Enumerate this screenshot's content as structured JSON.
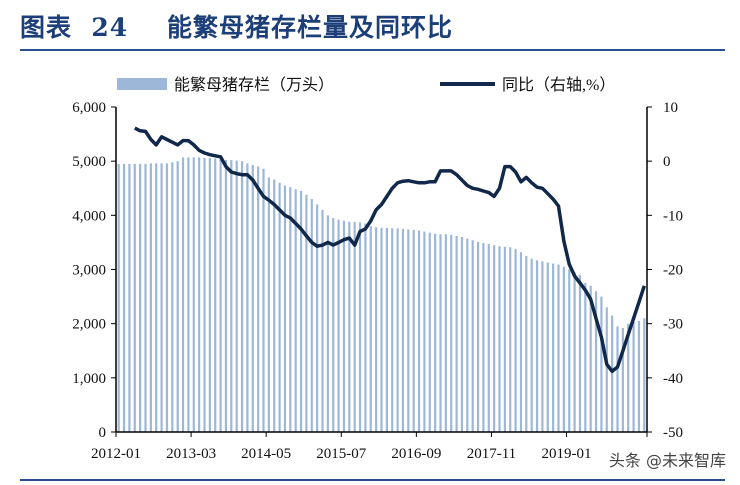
{
  "header": {
    "title": "图表  24    能繁母猪存栏量及同环比"
  },
  "watermark": "头条 @未来智库",
  "colors": {
    "bars": "#9db7d9",
    "line": "#12284a",
    "title": "#1c3f7a"
  },
  "chart_data": {
    "type": "bar+line",
    "title": "",
    "x_tick_labels": [
      "2012-01",
      "2013-03",
      "2014-05",
      "2015-07",
      "2016-09",
      "2017-11",
      "2019-01"
    ],
    "x_range": [
      "2012-01",
      "2020-03"
    ],
    "left_axis": {
      "ylim": [
        0,
        6000
      ],
      "ticks": [
        "0",
        "1,000",
        "2,000",
        "3,000",
        "4,000",
        "5,000",
        "6,000"
      ]
    },
    "right_axis": {
      "ylim": [
        -50,
        10
      ],
      "ticks": [
        "-50",
        "-40",
        "-30",
        "-20",
        "-10",
        "0",
        "10"
      ]
    },
    "legend": {
      "placement": "top",
      "bar_label": "能繁母猪存栏（万头）",
      "line_label": "同比（右轴,%）"
    },
    "grid": false,
    "series": [
      {
        "name": "能繁母猪存栏（万头）",
        "type": "bar",
        "axis": "left",
        "start": "2012-01",
        "values": [
          4950,
          4950,
          4950,
          4950,
          4950,
          4950,
          4960,
          4960,
          4960,
          4960,
          4980,
          5000,
          5070,
          5070,
          5070,
          5070,
          5060,
          5060,
          5050,
          5030,
          5020,
          5020,
          5010,
          5000,
          4960,
          4930,
          4900,
          4860,
          4700,
          4660,
          4600,
          4550,
          4520,
          4480,
          4450,
          4380,
          4300,
          4200,
          4100,
          4000,
          3950,
          3920,
          3900,
          3880,
          3880,
          3870,
          3850,
          3800,
          3780,
          3770,
          3770,
          3760,
          3760,
          3750,
          3740,
          3730,
          3720,
          3700,
          3680,
          3660,
          3650,
          3650,
          3640,
          3620,
          3600,
          3570,
          3540,
          3510,
          3490,
          3470,
          3450,
          3430,
          3420,
          3410,
          3380,
          3320,
          3250,
          3200,
          3170,
          3150,
          3130,
          3110,
          3090,
          3050,
          3000,
          2950,
          2900,
          2750,
          2700,
          2600,
          2500,
          2300,
          2150,
          1950,
          1920,
          2000,
          2030,
          2050,
          2100
        ]
      },
      {
        "name": "同比（右轴,%）",
        "type": "line",
        "axis": "right",
        "start": "2012-04",
        "values": [
          6.1,
          5.6,
          5.5,
          4,
          3,
          4.5,
          4,
          3.5,
          3,
          3.8,
          3.8,
          3,
          2,
          1.5,
          1.2,
          1,
          0.8,
          -1,
          -2,
          -2.3,
          -2.5,
          -2.5,
          -3.5,
          -5,
          -6.5,
          -7.2,
          -8,
          -9,
          -10,
          -10.5,
          -11.5,
          -12.5,
          -13.8,
          -15,
          -15.7,
          -15.5,
          -15,
          -15.5,
          -15,
          -14.5,
          -14.2,
          -15.5,
          -13,
          -12.5,
          -11,
          -9,
          -8,
          -6.5,
          -5,
          -4,
          -3.7,
          -3.6,
          -3.8,
          -4,
          -4,
          -3.8,
          -3.8,
          -1.8,
          -1.8,
          -1.8,
          -2.5,
          -3.5,
          -4.5,
          -5,
          -5.2,
          -5.5,
          -5.8,
          -6.5,
          -5,
          -1,
          -1,
          -2,
          -3.8,
          -3,
          -4,
          -4.8,
          -5,
          -6,
          -7,
          -8.3,
          -14.8,
          -19,
          -21.2,
          -22.5,
          -23.8,
          -25.5,
          -29,
          -32.5,
          -37.5,
          -38.8,
          -38,
          -35,
          -32,
          -29,
          -26,
          -23
        ]
      }
    ]
  }
}
